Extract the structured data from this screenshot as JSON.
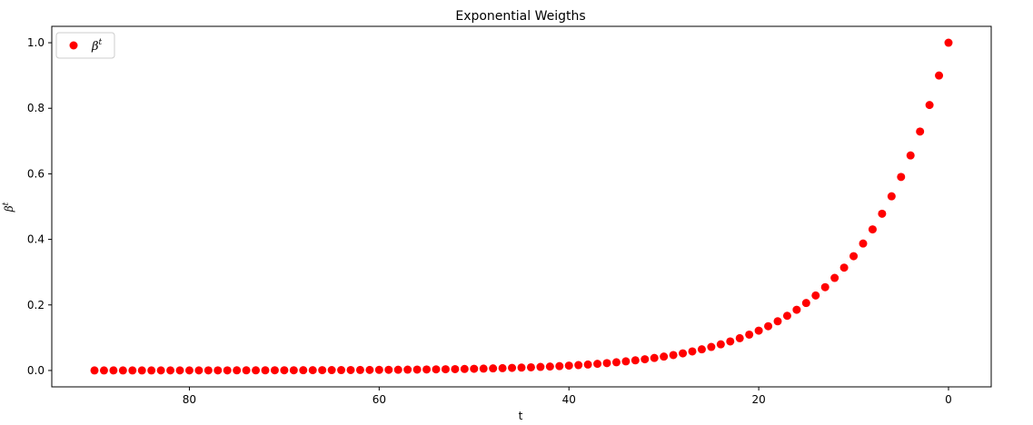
{
  "chart_data": {
    "type": "scatter",
    "title": "Exponential Weigths",
    "xlabel": "t",
    "ylabel": "βt",
    "ylabel_base": "β",
    "ylabel_exp": "t",
    "x_inverted": true,
    "xlim": [
      94.5,
      -4.5
    ],
    "ylim": [
      -0.05,
      1.05
    ],
    "xticks": [
      80,
      60,
      40,
      20,
      0
    ],
    "yticks": [
      "0.0",
      "0.2",
      "0.4",
      "0.6",
      "0.8",
      "1.0"
    ],
    "grid": false,
    "legend_placement": "top-left",
    "marker_color": "#ff0000",
    "series": [
      {
        "name": "βt",
        "name_base": "β",
        "name_exp": "t",
        "beta": 0.9,
        "x": [
          0,
          1,
          2,
          3,
          4,
          5,
          6,
          7,
          8,
          9,
          10,
          11,
          12,
          13,
          14,
          15,
          16,
          17,
          18,
          19,
          20,
          21,
          22,
          23,
          24,
          25,
          26,
          27,
          28,
          29,
          30,
          31,
          32,
          33,
          34,
          35,
          36,
          37,
          38,
          39,
          40,
          41,
          42,
          43,
          44,
          45,
          46,
          47,
          48,
          49,
          50,
          51,
          52,
          53,
          54,
          55,
          56,
          57,
          58,
          59,
          60,
          61,
          62,
          63,
          64,
          65,
          66,
          67,
          68,
          69,
          70,
          71,
          72,
          73,
          74,
          75,
          76,
          77,
          78,
          79,
          80,
          81,
          82,
          83,
          84,
          85,
          86,
          87,
          88,
          89,
          90
        ],
        "y": [
          1.0,
          0.9,
          0.81,
          0.729,
          0.6561,
          0.5905,
          0.5314,
          0.4783,
          0.4305,
          0.3874,
          0.3487,
          0.3138,
          0.2824,
          0.2542,
          0.2288,
          0.2059,
          0.1853,
          0.1668,
          0.1501,
          0.1351,
          0.1216,
          0.1094,
          0.0985,
          0.0886,
          0.0798,
          0.0718,
          0.0646,
          0.0581,
          0.0523,
          0.0471,
          0.0424,
          0.0382,
          0.0343,
          0.0309,
          0.0278,
          0.025,
          0.0225,
          0.0203,
          0.0182,
          0.0164,
          0.0148,
          0.0133,
          0.012,
          0.0108,
          0.0097,
          0.0087,
          0.0079,
          0.0071,
          0.0064,
          0.0057,
          0.0052,
          0.0046,
          0.0042,
          0.0038,
          0.0034,
          0.0031,
          0.0027,
          0.0025,
          0.0022,
          0.002,
          0.0018,
          0.0016,
          0.0015,
          0.0013,
          0.0012,
          0.0011,
          0.001,
          0.0009,
          0.0008,
          0.0007,
          0.0006,
          0.0006,
          0.0005,
          0.0005,
          0.0004,
          0.0004,
          0.0003,
          0.0003,
          0.0003,
          0.0002,
          0.0002,
          0.0002,
          0.0002,
          0.0002,
          0.0001,
          0.0001,
          0.0001,
          0.0001,
          0.0001,
          0.0001,
          0.0001
        ]
      }
    ]
  }
}
